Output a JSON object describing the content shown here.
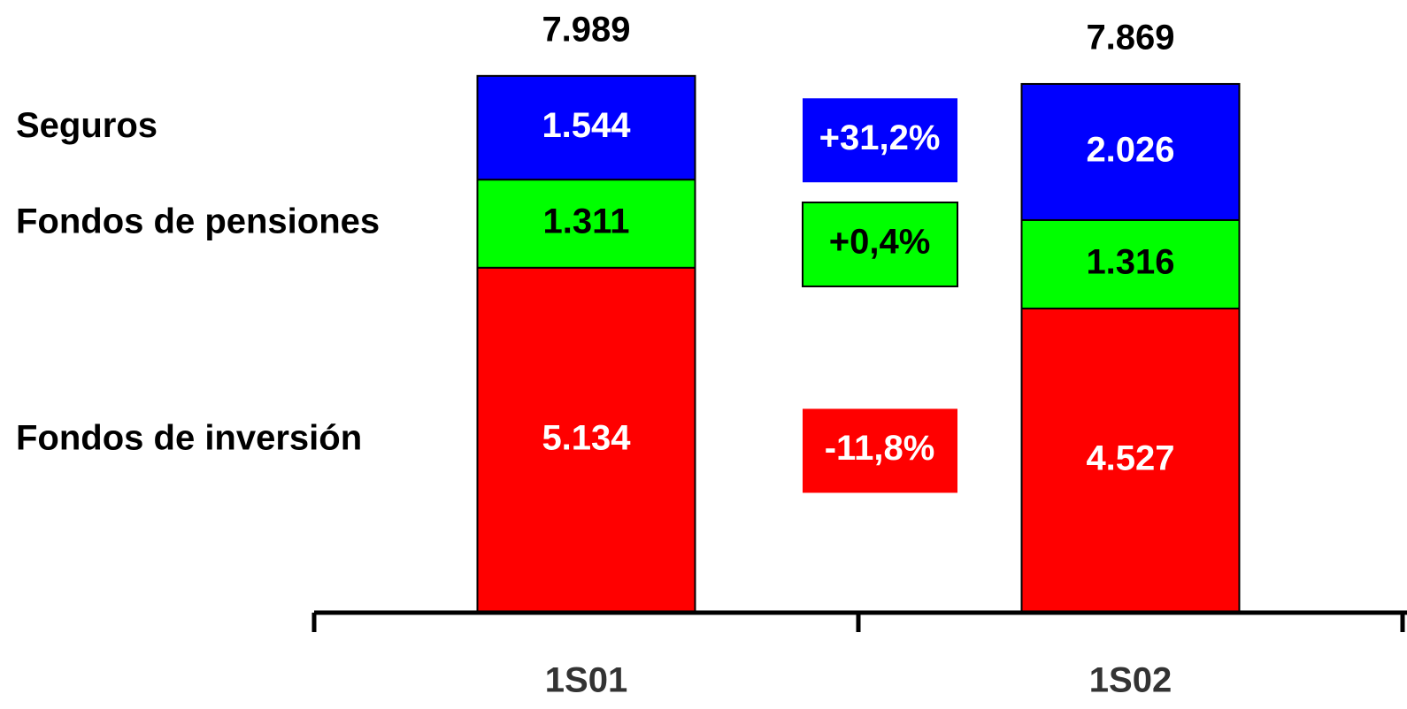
{
  "chart_data": {
    "type": "stacked_bar",
    "categories": [
      "1S01",
      "1S02"
    ],
    "series": [
      {
        "name": "Fondos de inversión",
        "color": "#ff0000",
        "text_color": "#ffffff",
        "values": [
          5134,
          4527
        ],
        "value_labels": [
          "5.134",
          "4.527"
        ],
        "change": "-11,8%"
      },
      {
        "name": "Fondos de pensiones",
        "color": "#00ff00",
        "text_color": "#000000",
        "values": [
          1311,
          1316
        ],
        "value_labels": [
          "1.311",
          "1.316"
        ],
        "change": "+0,4%"
      },
      {
        "name": "Seguros",
        "color": "#0000ff",
        "text_color": "#ffffff",
        "values": [
          1544,
          2026
        ],
        "value_labels": [
          "1.544",
          "2.026"
        ],
        "change": "+31,2%"
      }
    ],
    "totals": [
      {
        "value": 7989,
        "label": "7.989"
      },
      {
        "value": 7869,
        "label": "7.869"
      }
    ],
    "ylim": [
      0,
      8000
    ]
  }
}
